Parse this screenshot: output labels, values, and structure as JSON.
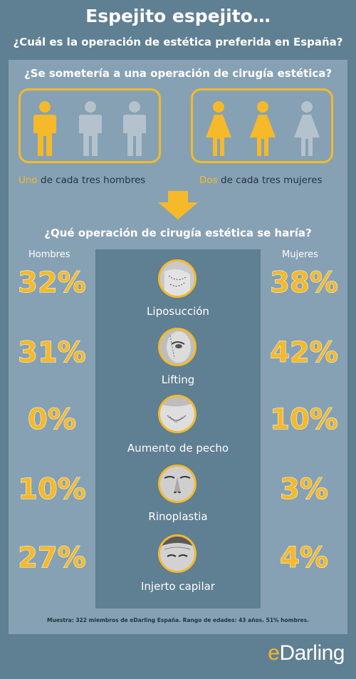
{
  "header": {
    "title": "Espejito espejito…",
    "subtitle": "¿Cuál es la operación de estética preferida en España?"
  },
  "survey": {
    "question": "¿Se sometería a una operación de cirugía estética?",
    "men": {
      "highlight": "Uno",
      "rest": " de cada tres hombres",
      "yes_count": 1,
      "total": 3
    },
    "women": {
      "highlight": "Dos",
      "rest": " de cada tres mujeres",
      "yes_count": 2,
      "total": 3
    }
  },
  "operations_section": {
    "question": "¿Qué operación de cirugía estética se haría?",
    "men_header": "Hombres",
    "women_header": "Mujeres",
    "rows": [
      {
        "name": "Liposucción",
        "men": "32%",
        "women": "38%",
        "icon": "liposuction-icon"
      },
      {
        "name": "Lifting",
        "men": "31%",
        "women": "42%",
        "icon": "facelift-icon"
      },
      {
        "name": "Aumento de pecho",
        "men": "0%",
        "women": "10%",
        "icon": "breast-augmentation-icon"
      },
      {
        "name": "Rinoplastia",
        "men": "10%",
        "women": "3%",
        "icon": "rhinoplasty-icon"
      },
      {
        "name": "Injerto capilar",
        "men": "27%",
        "women": "4%",
        "icon": "hair-transplant-icon"
      }
    ]
  },
  "footnote": "Muestra: 322 miembros de eDarling España. Rango de edades: 43 años. 51% hombres.",
  "brand": {
    "e": "e",
    "rest": "Darling"
  },
  "colors": {
    "background": "#5f7f92",
    "panel": "#86a1b3",
    "accent": "#f5b92a",
    "inactive": "#b3c2cc",
    "text_dark": "#1f3342"
  }
}
